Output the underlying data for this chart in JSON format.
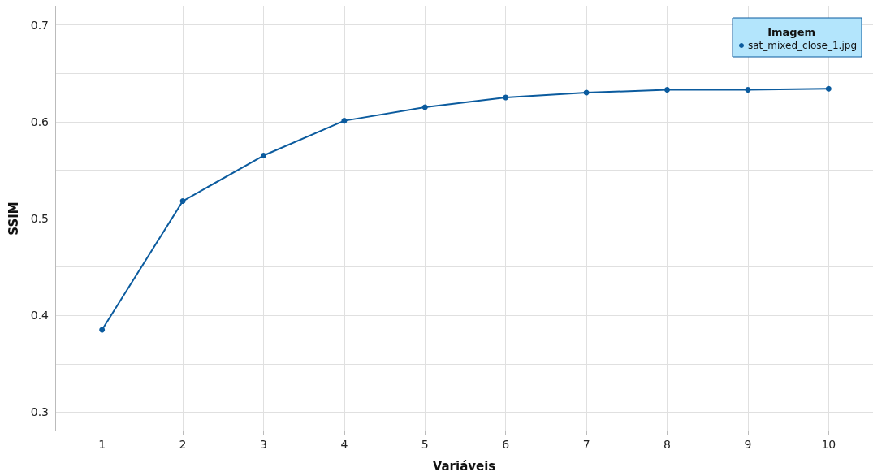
{
  "chart_data": {
    "type": "line",
    "xlabel": "Variáveis",
    "ylabel": "SSIM",
    "legend_title": "Imagem",
    "legend": "top right",
    "grid": true,
    "marker": "circle",
    "line_style": "solid",
    "x": [
      1,
      2,
      3,
      4,
      5,
      6,
      7,
      8,
      9,
      10
    ],
    "series": [
      {
        "name": "sat_mixed_close_1.jpg",
        "color": "#0b5b9e",
        "values": [
          0.385,
          0.518,
          0.565,
          0.601,
          0.615,
          0.625,
          0.63,
          0.633,
          0.633,
          0.634
        ]
      }
    ],
    "xlim": [
      0.42,
      10.55
    ],
    "xticks": [
      1,
      2,
      3,
      4,
      5,
      6,
      7,
      8,
      9,
      10
    ],
    "ylim": [
      0.281,
      0.719
    ],
    "yticks": [
      0.3,
      {
        "value": 0.35,
        "label": null
      },
      0.4,
      {
        "value": 0.45,
        "label": null
      },
      0.5,
      {
        "value": 0.55,
        "label": null
      },
      0.6,
      {
        "value": 0.65,
        "label": null
      },
      0.7
    ]
  }
}
